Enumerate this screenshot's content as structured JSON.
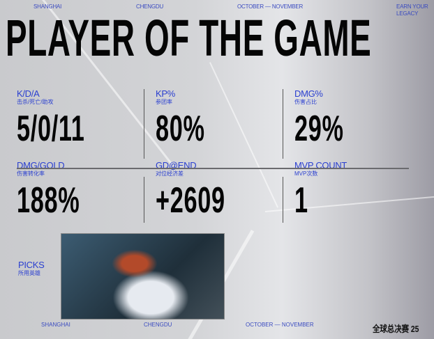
{
  "header": {
    "city1": "SHANGHAI",
    "city2": "CHENGDU",
    "dates": "OCTOBER — NOVEMBER",
    "slogan_line1": "EARN YOUR",
    "slogan_line2": "LEGACY"
  },
  "title": "PLAYER OF THE GAME",
  "stats": [
    {
      "label": "K/D/A",
      "label_cn": "击杀/死亡/助攻",
      "value": "5/0/11"
    },
    {
      "label": "KP%",
      "label_cn": "参团率",
      "value": "80%"
    },
    {
      "label": "DMG%",
      "label_cn": "伤害占比",
      "value": "29%"
    },
    {
      "label": "DMG/GOLD",
      "label_cn": "伤害转化率",
      "value": "188%"
    },
    {
      "label": "GD@END",
      "label_cn": "对位经济差",
      "value": "+2609"
    },
    {
      "label": "MVP COUNT",
      "label_cn": "MVP次数",
      "value": "1"
    }
  ],
  "picks": {
    "label": "PICKS",
    "label_cn": "所用英雄"
  },
  "footer": {
    "city1": "SHANGHAI",
    "city2": "CHENGDU",
    "dates": "OCTOBER — NOVEMBER",
    "logo": "全球总决赛 25"
  },
  "colors": {
    "accent": "#2a3fd0",
    "text": "#050505"
  }
}
